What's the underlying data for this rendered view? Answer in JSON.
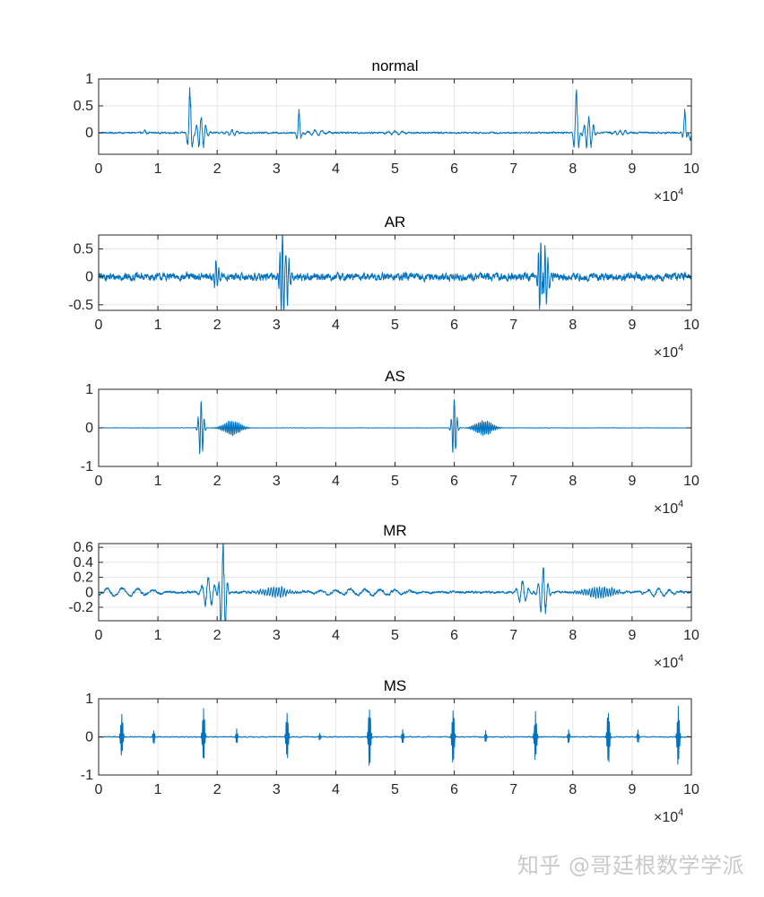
{
  "figure": {
    "line_color": "#0072bd",
    "watermark": "知乎 @哥廷根数学学派"
  },
  "chart_data": [
    {
      "type": "line",
      "title": "normal",
      "xlim": [
        0,
        100000
      ],
      "x_ticks": [
        0,
        10000,
        20000,
        30000,
        40000,
        50000,
        60000,
        70000,
        80000,
        90000,
        100000
      ],
      "x_tick_labels": [
        "0",
        "1",
        "2",
        "3",
        "4",
        "5",
        "6",
        "7",
        "8",
        "9",
        "10"
      ],
      "x_exponent_base": "×10",
      "x_exponent_power": "4",
      "ylim": [
        -0.4,
        1.0
      ],
      "y_ticks": [
        0,
        0.5,
        1
      ],
      "y_tick_labels": [
        "0",
        "0.5",
        "1"
      ],
      "grid": true,
      "baseline": 0.0,
      "noise": 0.012,
      "events": [
        {
          "x": 7800,
          "amp": 0.05,
          "width": 500,
          "period": 900
        },
        {
          "x": 15400,
          "amp": 0.78,
          "width": 600,
          "period": 1000
        },
        {
          "x": 17300,
          "amp": 0.3,
          "width": 1300,
          "period": 800
        },
        {
          "x": 22500,
          "amp": 0.05,
          "width": 1800,
          "period": 900
        },
        {
          "x": 33800,
          "amp": 0.37,
          "width": 500,
          "period": 900
        },
        {
          "x": 36500,
          "amp": 0.05,
          "width": 3000,
          "period": 1200
        },
        {
          "x": 50000,
          "amp": 0.03,
          "width": 3000,
          "period": 1200
        },
        {
          "x": 80600,
          "amp": 0.78,
          "width": 600,
          "period": 1000
        },
        {
          "x": 82700,
          "amp": 0.3,
          "width": 1300,
          "period": 800
        },
        {
          "x": 88000,
          "amp": 0.05,
          "width": 2000,
          "period": 900
        },
        {
          "x": 98900,
          "amp": 0.38,
          "width": 450,
          "period": 900
        },
        {
          "x": 99800,
          "amp": -0.12,
          "width": 500,
          "period": 1600
        }
      ]
    },
    {
      "type": "line",
      "title": "AR",
      "xlim": [
        0,
        100000
      ],
      "x_ticks": [
        0,
        10000,
        20000,
        30000,
        40000,
        50000,
        60000,
        70000,
        80000,
        90000,
        100000
      ],
      "x_tick_labels": [
        "0",
        "1",
        "2",
        "3",
        "4",
        "5",
        "6",
        "7",
        "8",
        "9",
        "10"
      ],
      "x_exponent_base": "×10",
      "x_exponent_power": "4",
      "ylim": [
        -0.6,
        0.75
      ],
      "y_ticks": [
        -0.5,
        0,
        0.5
      ],
      "y_tick_labels": [
        "-0.5",
        "0",
        "0.5"
      ],
      "grid": true,
      "baseline": 0.0,
      "noise": 0.05,
      "events": [
        {
          "x": 19800,
          "amp": 0.25,
          "width": 700,
          "period": 500
        },
        {
          "x": 31000,
          "amp": 0.72,
          "width": 700,
          "period": 420
        },
        {
          "x": 31600,
          "amp": 0.5,
          "width": 1100,
          "period": 520
        },
        {
          "x": 74600,
          "amp": 0.75,
          "width": 700,
          "period": 420
        },
        {
          "x": 75300,
          "amp": 0.5,
          "width": 1100,
          "period": 520
        }
      ]
    },
    {
      "type": "line",
      "title": "AS",
      "xlim": [
        0,
        100000
      ],
      "x_ticks": [
        0,
        10000,
        20000,
        30000,
        40000,
        50000,
        60000,
        70000,
        80000,
        90000,
        100000
      ],
      "x_tick_labels": [
        "0",
        "1",
        "2",
        "3",
        "4",
        "5",
        "6",
        "7",
        "8",
        "9",
        "10"
      ],
      "x_exponent_base": "×10",
      "x_exponent_power": "4",
      "ylim": [
        -1.0,
        1.0
      ],
      "y_ticks": [
        -1,
        0,
        1
      ],
      "y_tick_labels": [
        "-1",
        "0",
        "1"
      ],
      "grid": true,
      "baseline": 0.0,
      "noise": 0.004,
      "events": [
        {
          "x": 17300,
          "amp": 0.78,
          "width": 700,
          "period": 520
        },
        {
          "x": 22500,
          "amp": 0.18,
          "width": 2600,
          "period": 300
        },
        {
          "x": 60000,
          "amp": 0.78,
          "width": 700,
          "period": 520
        },
        {
          "x": 65000,
          "amp": 0.18,
          "width": 2600,
          "period": 300
        }
      ]
    },
    {
      "type": "line",
      "title": "MR",
      "xlim": [
        0,
        100000
      ],
      "x_ticks": [
        0,
        10000,
        20000,
        30000,
        40000,
        50000,
        60000,
        70000,
        80000,
        90000,
        100000
      ],
      "x_tick_labels": [
        "0",
        "1",
        "2",
        "3",
        "4",
        "5",
        "6",
        "7",
        "8",
        "9",
        "10"
      ],
      "x_exponent_base": "×10",
      "x_exponent_power": "4",
      "ylim": [
        -0.38,
        0.65
      ],
      "y_ticks": [
        -0.2,
        0,
        0.2,
        0.4,
        0.6
      ],
      "y_tick_labels": [
        "-0.2",
        "0",
        "0.2",
        "0.4",
        "0.6"
      ],
      "grid": true,
      "baseline": 0.0,
      "noise": 0.012,
      "events": [
        {
          "x": 4000,
          "amp": 0.05,
          "width": 9000,
          "period": 2600
        },
        {
          "x": 18500,
          "amp": 0.2,
          "width": 1800,
          "period": 1100
        },
        {
          "x": 21000,
          "amp": 0.63,
          "width": 900,
          "period": 800
        },
        {
          "x": 30000,
          "amp": 0.06,
          "width": 4000,
          "period": 450
        },
        {
          "x": 45000,
          "amp": 0.04,
          "width": 12000,
          "period": 2500
        },
        {
          "x": 71500,
          "amp": 0.15,
          "width": 1500,
          "period": 1100
        },
        {
          "x": 75000,
          "amp": 0.32,
          "width": 1200,
          "period": 850
        },
        {
          "x": 84500,
          "amp": 0.07,
          "width": 4500,
          "period": 420
        },
        {
          "x": 94500,
          "amp": 0.05,
          "width": 4000,
          "period": 1800
        }
      ]
    },
    {
      "type": "line",
      "title": "MS",
      "xlim": [
        0,
        100000
      ],
      "x_ticks": [
        0,
        10000,
        20000,
        30000,
        40000,
        50000,
        60000,
        70000,
        80000,
        90000,
        100000
      ],
      "x_tick_labels": [
        "0",
        "1",
        "2",
        "3",
        "4",
        "5",
        "6",
        "7",
        "8",
        "9",
        "10"
      ],
      "x_exponent_base": "×10",
      "x_exponent_power": "4",
      "ylim": [
        -1.0,
        1.0
      ],
      "y_ticks": [
        -1,
        0,
        1
      ],
      "y_tick_labels": [
        "-1",
        "0",
        "1"
      ],
      "grid": true,
      "baseline": 0.0,
      "noise": 0.01,
      "events": [
        {
          "x": 3900,
          "amp": 0.62,
          "width": 350,
          "period": 170
        },
        {
          "x": 9300,
          "amp": 0.2,
          "width": 250,
          "period": 170
        },
        {
          "x": 17700,
          "amp": 0.68,
          "width": 350,
          "period": 170
        },
        {
          "x": 23300,
          "amp": 0.2,
          "width": 250,
          "period": 170
        },
        {
          "x": 31800,
          "amp": 0.6,
          "width": 350,
          "period": 170
        },
        {
          "x": 37300,
          "amp": 0.1,
          "width": 250,
          "period": 170
        },
        {
          "x": 45700,
          "amp": 0.78,
          "width": 350,
          "period": 170
        },
        {
          "x": 51300,
          "amp": 0.22,
          "width": 250,
          "period": 170
        },
        {
          "x": 59800,
          "amp": 0.74,
          "width": 350,
          "period": 170
        },
        {
          "x": 65300,
          "amp": 0.15,
          "width": 250,
          "period": 170
        },
        {
          "x": 73700,
          "amp": 0.62,
          "width": 350,
          "period": 170
        },
        {
          "x": 79300,
          "amp": 0.2,
          "width": 250,
          "period": 170
        },
        {
          "x": 86000,
          "amp": 0.7,
          "width": 350,
          "period": 170
        },
        {
          "x": 91000,
          "amp": 0.18,
          "width": 250,
          "period": 170
        },
        {
          "x": 97800,
          "amp": 0.78,
          "width": 350,
          "period": 170
        }
      ]
    }
  ]
}
